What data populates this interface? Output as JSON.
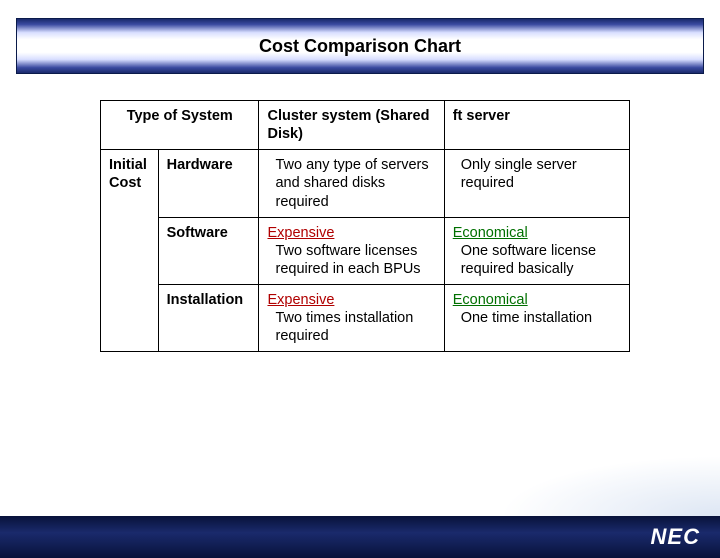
{
  "title": "Cost Comparison Chart",
  "table": {
    "header": {
      "type_of_system": "Type of System",
      "cluster": "Cluster system (Shared Disk)",
      "ft": "ft server"
    },
    "row_group_label": "Initial Cost",
    "rows": [
      {
        "sub": "Hardware",
        "cluster": "Two any type of servers and shared disks required",
        "ft": "Only single server required"
      },
      {
        "sub": "Software",
        "cluster_head": "Expensive",
        "cluster_body": "Two software licenses  required in each  BPUs",
        "ft_head": "Economical",
        "ft_body": "One software license  required basically"
      },
      {
        "sub": "Installation",
        "cluster_head": "Expensive",
        "cluster_body": "Two times installation required",
        "ft_head": "Economical",
        "ft_body": "One time installation"
      }
    ]
  },
  "footer": {
    "logo_text": "NEC"
  },
  "colors": {
    "title_gradient_dark": "#1a2a6c",
    "title_gradient_light": "#ffffff",
    "border": "#000000",
    "expensive": "#b00000",
    "economical": "#007000",
    "footer_bg": "#08123a"
  }
}
